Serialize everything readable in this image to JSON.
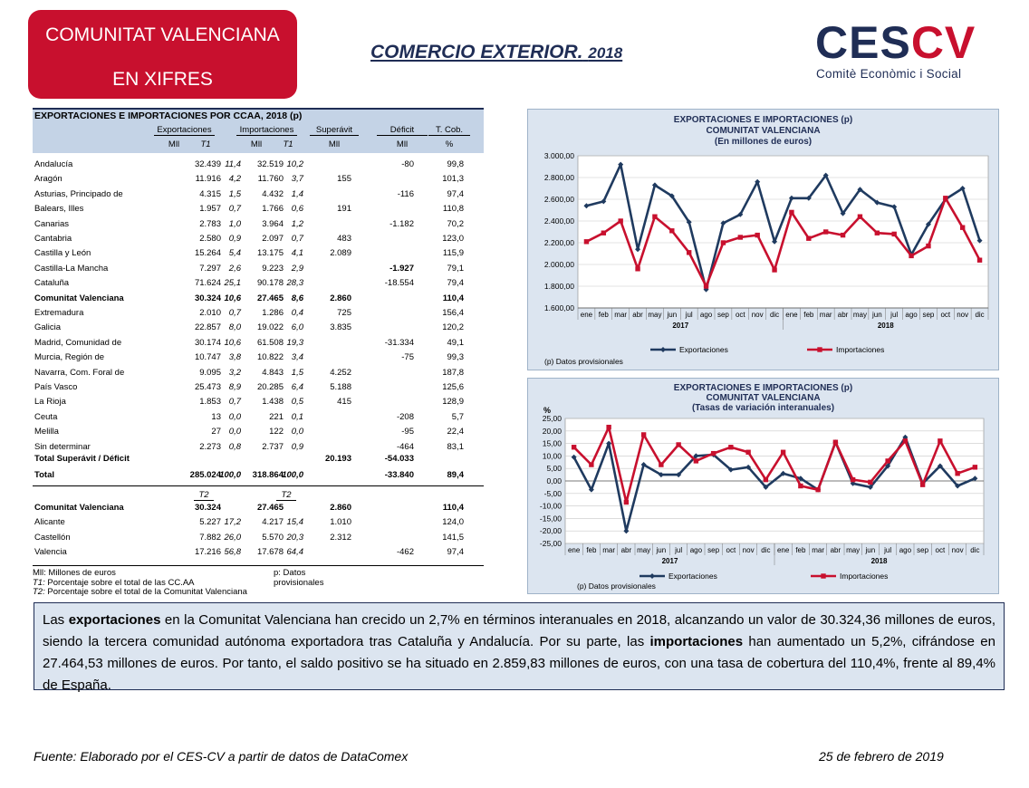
{
  "header": {
    "badge_line1": "COMUNITAT VALENCIANA",
    "badge_line2": "EN XIFRES",
    "title": "COMERCIO EXTERIOR.",
    "title_year": "2018",
    "logo_ces": "CES",
    "logo_cv": "CV",
    "logo_sub": "Comitè Econòmic i Social",
    "colors": {
      "brand_red": "#c8102e",
      "brand_navy": "#1f2d55",
      "panel_blue": "#dce5f0"
    }
  },
  "table": {
    "title": "EXPORTACIONES  E  IMPORTACIONES POR CCAA,  2018 (p)",
    "groups": [
      "Exportaciones",
      "Importaciones",
      "Superávit",
      "Déficit",
      "T. Cob."
    ],
    "subheaders": [
      "Mll",
      "T1",
      "Mll",
      "T1",
      "Mll",
      "Mll",
      "%"
    ],
    "rows": [
      {
        "name": "Andalucía",
        "exp": "32.439",
        "expt": "11,4",
        "imp": "32.519",
        "impt": "10,2",
        "sup": "",
        "def": "-80",
        "cob": "99,8",
        "bold": false
      },
      {
        "name": "Aragón",
        "exp": "11.916",
        "expt": "4,2",
        "imp": "11.760",
        "impt": "3,7",
        "sup": "155",
        "def": "",
        "cob": "101,3",
        "bold": false
      },
      {
        "name": "Asturias, Principado de",
        "exp": "4.315",
        "expt": "1,5",
        "imp": "4.432",
        "impt": "1,4",
        "sup": "",
        "def": "-116",
        "cob": "97,4",
        "bold": false
      },
      {
        "name": "Balears, Illes",
        "exp": "1.957",
        "expt": "0,7",
        "imp": "1.766",
        "impt": "0,6",
        "sup": "191",
        "def": "",
        "cob": "110,8",
        "bold": false
      },
      {
        "name": "Canarias",
        "exp": "2.783",
        "expt": "1,0",
        "imp": "3.964",
        "impt": "1,2",
        "sup": "",
        "def": "-1.182",
        "cob": "70,2",
        "bold": false
      },
      {
        "name": "Cantabria",
        "exp": "2.580",
        "expt": "0,9",
        "imp": "2.097",
        "impt": "0,7",
        "sup": "483",
        "def": "",
        "cob": "123,0",
        "bold": false
      },
      {
        "name": "Castilla y León",
        "exp": "15.264",
        "expt": "5,4",
        "imp": "13.175",
        "impt": "4,1",
        "sup": "2.089",
        "def": "",
        "cob": "115,9",
        "bold": false
      },
      {
        "name": "Castilla-La Mancha",
        "exp": "7.297",
        "expt": "2,6",
        "imp": "9.223",
        "impt": "2,9",
        "sup": "",
        "def": "-1.927",
        "cob": "79,1",
        "bold": false,
        "def_bold": true
      },
      {
        "name": "Cataluña",
        "exp": "71.624",
        "expt": "25,1",
        "imp": "90.178",
        "impt": "28,3",
        "sup": "",
        "def": "-18.554",
        "cob": "79,4",
        "bold": false
      },
      {
        "name": "Comunitat Valenciana",
        "exp": "30.324",
        "expt": "10,6",
        "imp": "27.465",
        "impt": "8,6",
        "sup": "2.860",
        "def": "",
        "cob": "110,4",
        "bold": true
      },
      {
        "name": "Extremadura",
        "exp": "2.010",
        "expt": "0,7",
        "imp": "1.286",
        "impt": "0,4",
        "sup": "725",
        "def": "",
        "cob": "156,4",
        "bold": false
      },
      {
        "name": "Galicia",
        "exp": "22.857",
        "expt": "8,0",
        "imp": "19.022",
        "impt": "6,0",
        "sup": "3.835",
        "def": "",
        "cob": "120,2",
        "bold": false
      },
      {
        "name": "Madrid, Comunidad de",
        "exp": "30.174",
        "expt": "10,6",
        "imp": "61.508",
        "impt": "19,3",
        "sup": "",
        "def": "-31.334",
        "cob": "49,1",
        "bold": false
      },
      {
        "name": "Murcia, Región de",
        "exp": "10.747",
        "expt": "3,8",
        "imp": "10.822",
        "impt": "3,4",
        "sup": "",
        "def": "-75",
        "cob": "99,3",
        "bold": false
      },
      {
        "name": "Navarra, Com. Foral de",
        "exp": "9.095",
        "expt": "3,2",
        "imp": "4.843",
        "impt": "1,5",
        "sup": "4.252",
        "def": "",
        "cob": "187,8",
        "bold": false
      },
      {
        "name": "País Vasco",
        "exp": "25.473",
        "expt": "8,9",
        "imp": "20.285",
        "impt": "6,4",
        "sup": "5.188",
        "def": "",
        "cob": "125,6",
        "bold": false
      },
      {
        "name": "La Rioja",
        "exp": "1.853",
        "expt": "0,7",
        "imp": "1.438",
        "impt": "0,5",
        "sup": "415",
        "def": "",
        "cob": "128,9",
        "bold": false
      },
      {
        "name": "Ceuta",
        "exp": "13",
        "expt": "0,0",
        "imp": "221",
        "impt": "0,1",
        "sup": "",
        "def": "-208",
        "cob": "5,7",
        "bold": false
      },
      {
        "name": "Melilla",
        "exp": "27",
        "expt": "0,0",
        "imp": "122",
        "impt": "0,0",
        "sup": "",
        "def": "-95",
        "cob": "22,4",
        "bold": false
      },
      {
        "name": "Sin determinar",
        "exp": "2.273",
        "expt": "0,8",
        "imp": "2.737",
        "impt": "0,9",
        "sup": "",
        "def": "-464",
        "cob": "83,1",
        "bold": false
      }
    ],
    "total_sd": {
      "name": "Total Superávit /  Déficit",
      "sup": "20.193",
      "def": "-54.033"
    },
    "total": {
      "name": "Total",
      "exp": "285.024",
      "expt": "100,0",
      "imp": "318.864",
      "impt": "100,0",
      "def": "-33.840",
      "cob": "89,4"
    },
    "t2_label": "T2",
    "prov_rows": [
      {
        "name": "Comunitat Valenciana",
        "exp": "30.324",
        "expt": "",
        "imp": "27.465",
        "impt": "",
        "sup": "2.860",
        "def": "",
        "cob": "110,4",
        "bold": true
      },
      {
        "name": "Alicante",
        "exp": "5.227",
        "expt": "17,2",
        "imp": "4.217",
        "impt": "15,4",
        "sup": "1.010",
        "def": "",
        "cob": "124,0",
        "bold": false
      },
      {
        "name": "Castellón",
        "exp": "7.882",
        "expt": "26,0",
        "imp": "5.570",
        "impt": "20,3",
        "sup": "2.312",
        "def": "",
        "cob": "141,5",
        "bold": false
      },
      {
        "name": "Valencia",
        "exp": "17.216",
        "expt": "56,8",
        "imp": "17.678",
        "impt": "64,4",
        "sup": "",
        "def": "-462",
        "cob": "97,4",
        "bold": false
      }
    ],
    "notes": {
      "mll": "Mll:  Millones de euros",
      "prov": "p: Datos provisionales",
      "t1": "Porcentaje sobre el total de las CC.AA",
      "t1_key": "T1:",
      "t2": "Porcentaje sobre el total de la Comunitat Valenciana",
      "t2_key": "T2:"
    }
  },
  "chart_data": [
    {
      "type": "line",
      "title": "EXPORTACIONES E IMPORTACIONES (p)",
      "subtitle1": "COMUNITAT VALENCIANA",
      "subtitle2": "(En millones de euros)",
      "categories": [
        "ene",
        "feb",
        "mar",
        "abr",
        "may",
        "jun",
        "jul",
        "ago",
        "sep",
        "oct",
        "nov",
        "dic",
        "ene",
        "feb",
        "mar",
        "abr",
        "may",
        "jun",
        "jul",
        "ago",
        "sep",
        "oct",
        "nov",
        "dic"
      ],
      "year_labels": [
        "2017",
        "2018"
      ],
      "ylim": [
        1600,
        3000
      ],
      "yticks": [
        "1.600,00",
        "1.800,00",
        "2.000,00",
        "2.200,00",
        "2.400,00",
        "2.600,00",
        "2.800,00",
        "3.000,00"
      ],
      "series": [
        {
          "name": "Exportaciones",
          "color": "#1f3a5f",
          "values": [
            2540,
            2580,
            2920,
            2140,
            2730,
            2630,
            2390,
            1770,
            2380,
            2460,
            2760,
            2210,
            2610,
            2610,
            2820,
            2470,
            2690,
            2570,
            2530,
            2090,
            2370,
            2600,
            2700,
            2220
          ]
        },
        {
          "name": "Importaciones",
          "color": "#c8102e",
          "values": [
            2210,
            2290,
            2400,
            1960,
            2440,
            2310,
            2110,
            1800,
            2200,
            2250,
            2270,
            1950,
            2480,
            2240,
            2300,
            2270,
            2440,
            2290,
            2280,
            2080,
            2170,
            2610,
            2340,
            2040
          ]
        }
      ],
      "note": "(p) Datos provisionales",
      "grid": true,
      "legend": "bottom"
    },
    {
      "type": "line",
      "title": "EXPORTACIONES E IMPORTACIONES (p)",
      "subtitle1": "COMUNITAT VALENCIANA",
      "subtitle2": "(Tasas de variación interanuales)",
      "ylabel": "%",
      "categories": [
        "ene",
        "feb",
        "mar",
        "abr",
        "may",
        "jun",
        "jul",
        "ago",
        "sep",
        "oct",
        "nov",
        "dic",
        "ene",
        "feb",
        "mar",
        "abr",
        "may",
        "jun",
        "jul",
        "ago",
        "sep",
        "oct",
        "nov",
        "dic"
      ],
      "year_labels": [
        "2017",
        "2018"
      ],
      "ylim": [
        -25,
        25
      ],
      "yticks": [
        "-25,00",
        "-20,00",
        "-15,00",
        "-10,00",
        "-5,00",
        "0,00",
        "5,00",
        "10,00",
        "15,00",
        "20,00",
        "25,00"
      ],
      "series": [
        {
          "name": "Exportaciones",
          "color": "#1f3a5f",
          "values": [
            9.5,
            -3.5,
            15.0,
            -20.0,
            6.5,
            2.5,
            2.5,
            10.0,
            10.5,
            4.5,
            5.5,
            -2.5,
            3.0,
            1.0,
            -3.5,
            15.5,
            -1.0,
            -2.5,
            6.0,
            17.5,
            -1.0,
            6.0,
            -2.0,
            1.0
          ]
        },
        {
          "name": "Importaciones",
          "color": "#c8102e",
          "values": [
            13.5,
            6.5,
            21.5,
            -8.5,
            18.5,
            6.5,
            14.5,
            8.0,
            11.0,
            13.5,
            11.5,
            0.5,
            11.5,
            -2.0,
            -3.5,
            15.5,
            0.5,
            -0.5,
            8.0,
            16.0,
            -1.5,
            16.0,
            3.0,
            5.5
          ]
        }
      ],
      "note": "(p) Datos provisionales",
      "grid": true,
      "legend": "bottom"
    }
  ],
  "summary": {
    "p1": "Las ",
    "b1": "exportaciones",
    "p2": " en la Comunitat Valenciana han crecido un 2,7% en términos interanuales en 2018, alcanzando un valor de 30.324,36 millones de euros, siendo la tercera comunidad autónoma exportadora tras Cataluña y Andalucía. Por su parte, las ",
    "b2": "importaciones",
    "p3": " han aumentado un 5,2%, cifrándose en 27.464,53 millones de euros. Por tanto, el saldo positivo se ha situado en 2.859,83 millones de euros, con una tasa de cobertura del 110,4%, frente al 89,4% de España."
  },
  "footer": {
    "source": "Fuente: Elaborado por el CES-CV a partir de datos de DataComex",
    "date": "25 de febrero de 2019"
  }
}
